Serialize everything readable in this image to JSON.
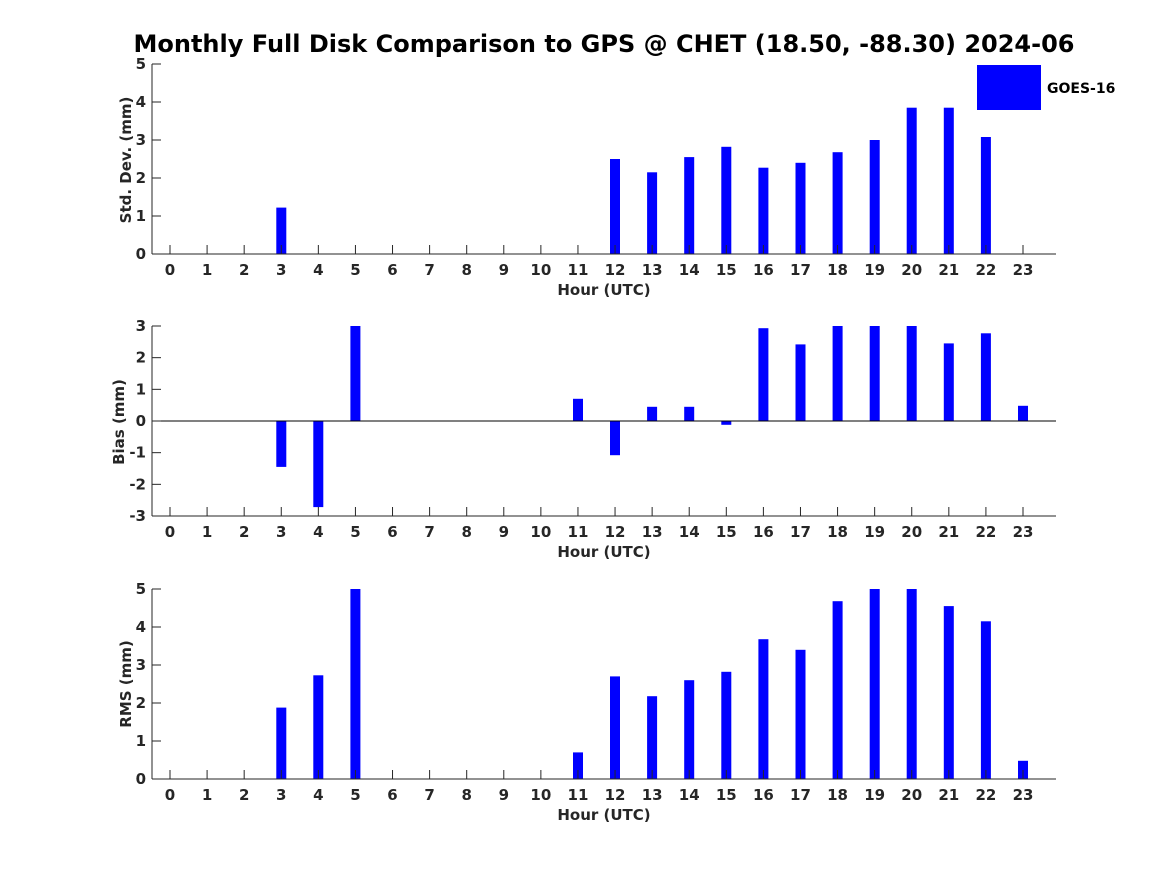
{
  "title": "Monthly Full Disk Comparison to GPS @ CHET (18.50, -88.30) 2024-06",
  "legend": {
    "label": "GOES-16",
    "color": "#0000ff"
  },
  "chart_data": [
    {
      "type": "bar",
      "xlabel": "Hour (UTC)",
      "ylabel": "Std. Dev. (mm)",
      "ylim": [
        0,
        5
      ],
      "yticks": [
        "0",
        "1",
        "2",
        "3",
        "4",
        "5"
      ],
      "categories": [
        "0",
        "1",
        "2",
        "3",
        "4",
        "5",
        "6",
        "7",
        "8",
        "9",
        "10",
        "11",
        "12",
        "13",
        "14",
        "15",
        "16",
        "17",
        "18",
        "19",
        "20",
        "21",
        "22",
        "23"
      ],
      "values": [
        null,
        null,
        null,
        1.22,
        null,
        null,
        null,
        null,
        null,
        null,
        null,
        null,
        2.5,
        2.15,
        2.55,
        2.82,
        2.27,
        2.4,
        2.68,
        3.0,
        3.85,
        3.85,
        3.08,
        null
      ],
      "series_color": "#0000ff"
    },
    {
      "type": "bar",
      "xlabel": "Hour (UTC)",
      "ylabel": "Bias (mm)",
      "ylim": [
        -3,
        3
      ],
      "yticks": [
        "-3",
        "-2",
        "-1",
        "0",
        "1",
        "2",
        "3"
      ],
      "categories": [
        "0",
        "1",
        "2",
        "3",
        "4",
        "5",
        "6",
        "7",
        "8",
        "9",
        "10",
        "11",
        "12",
        "13",
        "14",
        "15",
        "16",
        "17",
        "18",
        "19",
        "20",
        "21",
        "22",
        "23"
      ],
      "values": [
        null,
        null,
        null,
        -1.45,
        -2.72,
        3.0,
        null,
        null,
        null,
        null,
        null,
        0.7,
        -1.08,
        0.45,
        0.45,
        -0.12,
        2.93,
        2.42,
        3.0,
        3.0,
        3.0,
        2.45,
        2.77,
        0.48
      ],
      "series_color": "#0000ff"
    },
    {
      "type": "bar",
      "xlabel": "Hour (UTC)",
      "ylabel": "RMS (mm)",
      "ylim": [
        0,
        5
      ],
      "yticks": [
        "0",
        "1",
        "2",
        "3",
        "4",
        "5"
      ],
      "categories": [
        "0",
        "1",
        "2",
        "3",
        "4",
        "5",
        "6",
        "7",
        "8",
        "9",
        "10",
        "11",
        "12",
        "13",
        "14",
        "15",
        "16",
        "17",
        "18",
        "19",
        "20",
        "21",
        "22",
        "23"
      ],
      "values": [
        null,
        null,
        null,
        1.88,
        2.73,
        5.0,
        null,
        null,
        null,
        null,
        null,
        0.7,
        2.7,
        2.18,
        2.6,
        2.82,
        3.68,
        3.4,
        4.68,
        5.0,
        5.0,
        4.55,
        4.15,
        0.48
      ],
      "series_color": "#0000ff"
    }
  ]
}
